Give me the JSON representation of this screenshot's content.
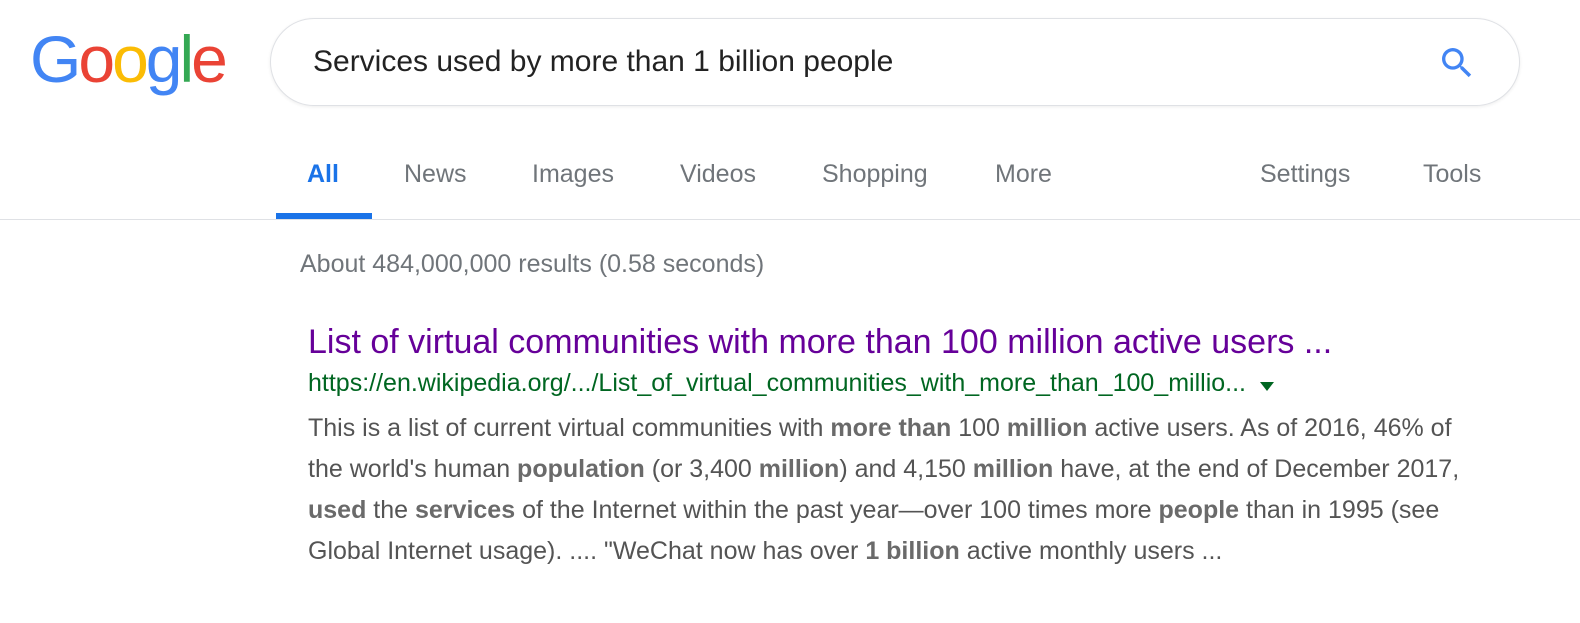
{
  "logo": {
    "letters": [
      "G",
      "o",
      "o",
      "g",
      "l",
      "e"
    ],
    "colors": [
      "#4285F4",
      "#EA4335",
      "#FBBC05",
      "#4285F4",
      "#34A853",
      "#EA4335"
    ]
  },
  "search": {
    "value": "Services used by more than 1 billion people",
    "icon": "search-icon",
    "icon_color": "#4285F4"
  },
  "tabs": [
    {
      "label": "All",
      "active": true
    },
    {
      "label": "News"
    },
    {
      "label": "Images"
    },
    {
      "label": "Videos"
    },
    {
      "label": "Shopping"
    },
    {
      "label": "More"
    },
    {
      "label": "Settings"
    },
    {
      "label": "Tools"
    }
  ],
  "result_stats": "About 484,000,000 results (0.58 seconds)",
  "result": {
    "title": "List of virtual communities with more than 100 million active users ...",
    "url": "https://en.wikipedia.org/.../List_of_virtual_communities_with_more_than_100_millio...",
    "snippet_segments": [
      {
        "text": "This is a list of current virtual communities with "
      },
      {
        "text": "more than",
        "bold": true
      },
      {
        "text": " 100 "
      },
      {
        "text": "million",
        "bold": true
      },
      {
        "text": " active users. As of 2016, 46% of the world's human "
      },
      {
        "text": "population",
        "bold": true
      },
      {
        "text": " (or 3,400 "
      },
      {
        "text": "million",
        "bold": true
      },
      {
        "text": ") and 4,150 "
      },
      {
        "text": "million",
        "bold": true
      },
      {
        "text": " have, at the end of December 2017, "
      },
      {
        "text": "used",
        "bold": true
      },
      {
        "text": " the "
      },
      {
        "text": "services",
        "bold": true
      },
      {
        "text": " of the Internet within the past year—over 100 times more "
      },
      {
        "text": "people",
        "bold": true
      },
      {
        "text": " than in 1995 (see Global Internet usage). .... \"WeChat now has over "
      },
      {
        "text": "1 billion",
        "bold": true
      },
      {
        "text": " active monthly users ..."
      }
    ]
  }
}
